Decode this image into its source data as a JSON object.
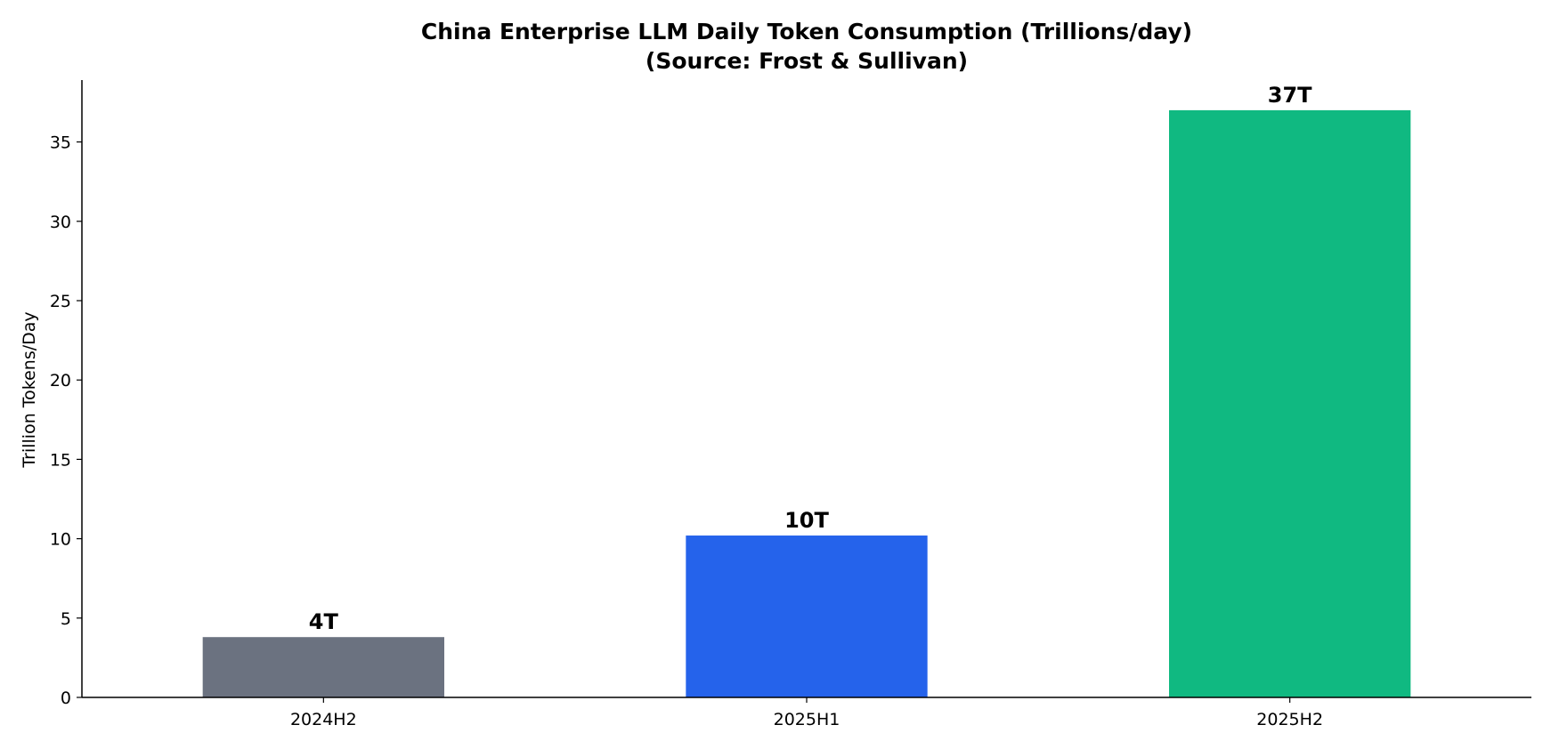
{
  "chart_data": {
    "type": "bar",
    "title": "China Enterprise LLM Daily Token Consumption (Trillions/day)",
    "subtitle": "(Source: Frost & Sullivan)",
    "xlabel": "",
    "ylabel": "Trillion Tokens/Day",
    "categories": [
      "2024H2",
      "2025H1",
      "2025H2"
    ],
    "values": [
      3.8,
      10.2,
      37
    ],
    "data_labels": [
      "4T",
      "10T",
      "37T"
    ],
    "colors": [
      "#6b7280",
      "#2563eb",
      "#10b981"
    ],
    "ylim": [
      0,
      38.9
    ],
    "yticks": [
      0,
      5,
      10,
      15,
      20,
      25,
      30,
      35
    ],
    "grid": false,
    "legend": "none"
  }
}
